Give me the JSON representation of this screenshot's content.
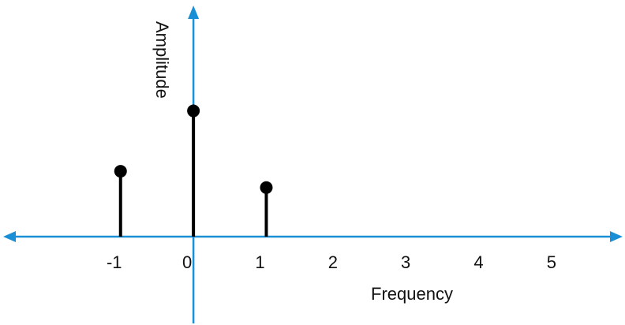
{
  "chart_data": {
    "type": "stem",
    "title": "",
    "xlabel": "Frequency",
    "ylabel": "Amplitude",
    "x_ticks": [
      "-1",
      "0",
      "1",
      "2",
      "3",
      "4",
      "5"
    ],
    "points": [
      {
        "x": -1,
        "y": 0.52
      },
      {
        "x": 0,
        "y": 1.0
      },
      {
        "x": 1,
        "y": 0.39
      }
    ],
    "xlim": [
      -2.6,
      5.9
    ],
    "ylim": [
      0,
      1.85
    ],
    "grid": false,
    "colors": {
      "axis": "#1a8fd6",
      "stem": "#000000",
      "text": "#111111"
    }
  }
}
